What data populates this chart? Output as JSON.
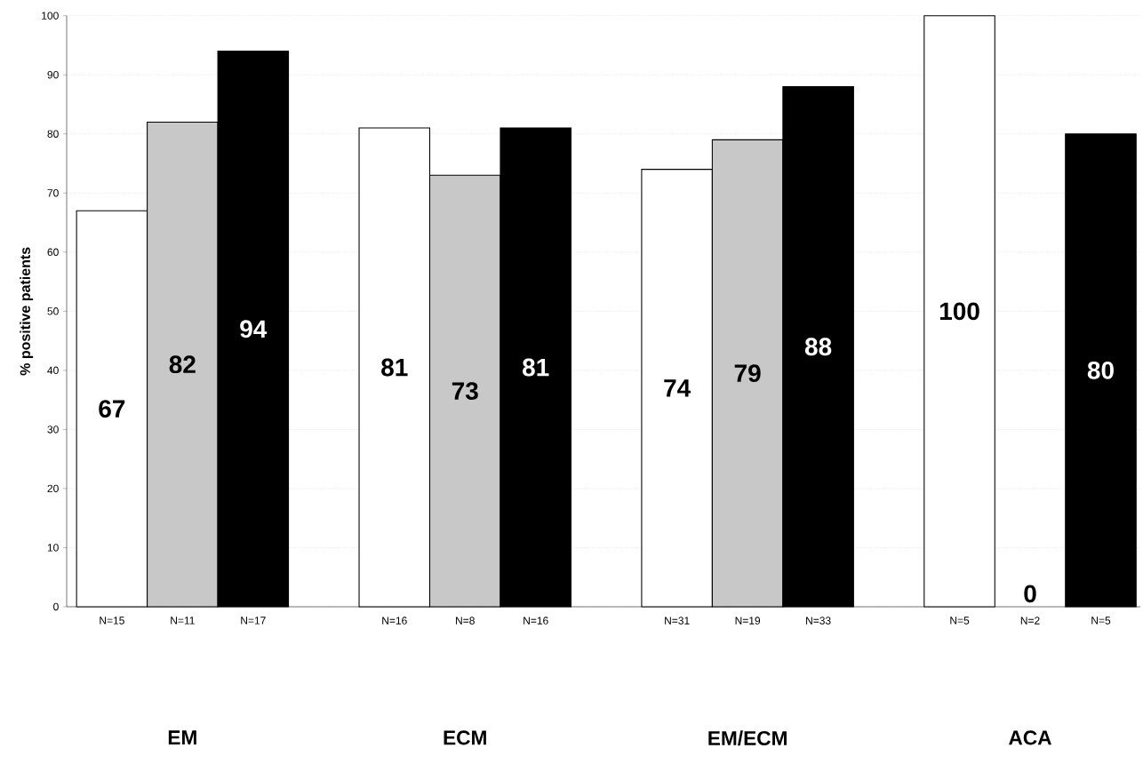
{
  "chart_data": {
    "type": "bar",
    "ylabel": "% positive patients",
    "categories": [
      "EM",
      "ECM",
      "EM/ECM",
      "ACA"
    ],
    "series": [
      {
        "color": "#ffffff",
        "values": [
          67,
          81,
          74,
          100
        ]
      },
      {
        "color": "#c8c8c8",
        "values": [
          82,
          73,
          79,
          0
        ]
      },
      {
        "color": "#000000",
        "values": [
          94,
          81,
          88,
          80
        ]
      }
    ],
    "ylim": [
      0,
      100
    ],
    "yticks": [
      0,
      10,
      20,
      30,
      40,
      50,
      60,
      70,
      80,
      90,
      100
    ],
    "grid": "y",
    "data_labels": true,
    "annotations": [
      "N=15",
      "N=11",
      "N=17",
      "N=16",
      "N=8",
      "N=16",
      "N=31",
      "N=19",
      "N=33",
      "N=5",
      "N=2",
      "N=5"
    ]
  }
}
